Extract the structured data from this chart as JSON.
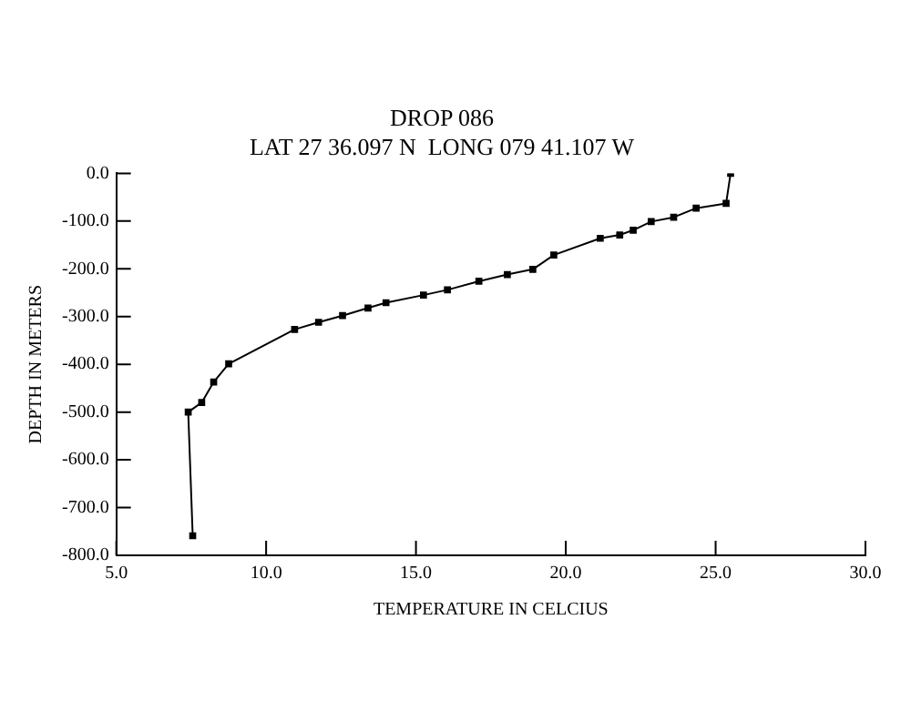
{
  "chart_data": {
    "type": "line",
    "title": "DROP 086",
    "subtitle": "LAT 27 36.097 N  LONG 079 41.107 W",
    "xlabel": "TEMPERATURE IN CELCIUS",
    "ylabel": "DEPTH IN METERS",
    "x": [
      25.5,
      25.35,
      24.35,
      23.6,
      22.85,
      22.25,
      21.8,
      21.15,
      19.6,
      18.9,
      18.05,
      17.1,
      16.05,
      15.25,
      14.0,
      13.4,
      12.55,
      11.75,
      10.95,
      8.75,
      8.25,
      7.85,
      7.4,
      7.55
    ],
    "values": [
      0,
      -63,
      -73,
      -92,
      -101,
      -119,
      -129,
      -136,
      -171,
      -201,
      -212,
      -226,
      -244,
      -255,
      -271,
      -282,
      -298,
      -312,
      -327,
      -399,
      -437,
      -480,
      -500,
      -759
    ],
    "color": "#000000",
    "marker": "square",
    "line_style": "solid",
    "xlim": [
      5,
      30
    ],
    "xticks": [
      {
        "value": 5,
        "label": "5.0"
      },
      {
        "value": 10,
        "label": "10.0"
      },
      {
        "value": 15,
        "label": "15.0"
      },
      {
        "value": 20,
        "label": "20.0"
      },
      {
        "value": 25,
        "label": "25.0"
      },
      {
        "value": 30,
        "label": "30.0"
      }
    ],
    "ylim": [
      -800,
      0
    ],
    "yticks": [
      {
        "value": -800,
        "label": "-800.0"
      },
      {
        "value": -700,
        "label": "-700.0"
      },
      {
        "value": -600,
        "label": "-600.0"
      },
      {
        "value": -500,
        "label": "-500.0"
      },
      {
        "value": -400,
        "label": "-400.0"
      },
      {
        "value": -300,
        "label": "-300.0"
      },
      {
        "value": -200,
        "label": "-200.0"
      },
      {
        "value": -100,
        "label": "-100.0"
      },
      {
        "value": 0,
        "label": "0.0"
      }
    ],
    "grid": false,
    "legend": false
  }
}
